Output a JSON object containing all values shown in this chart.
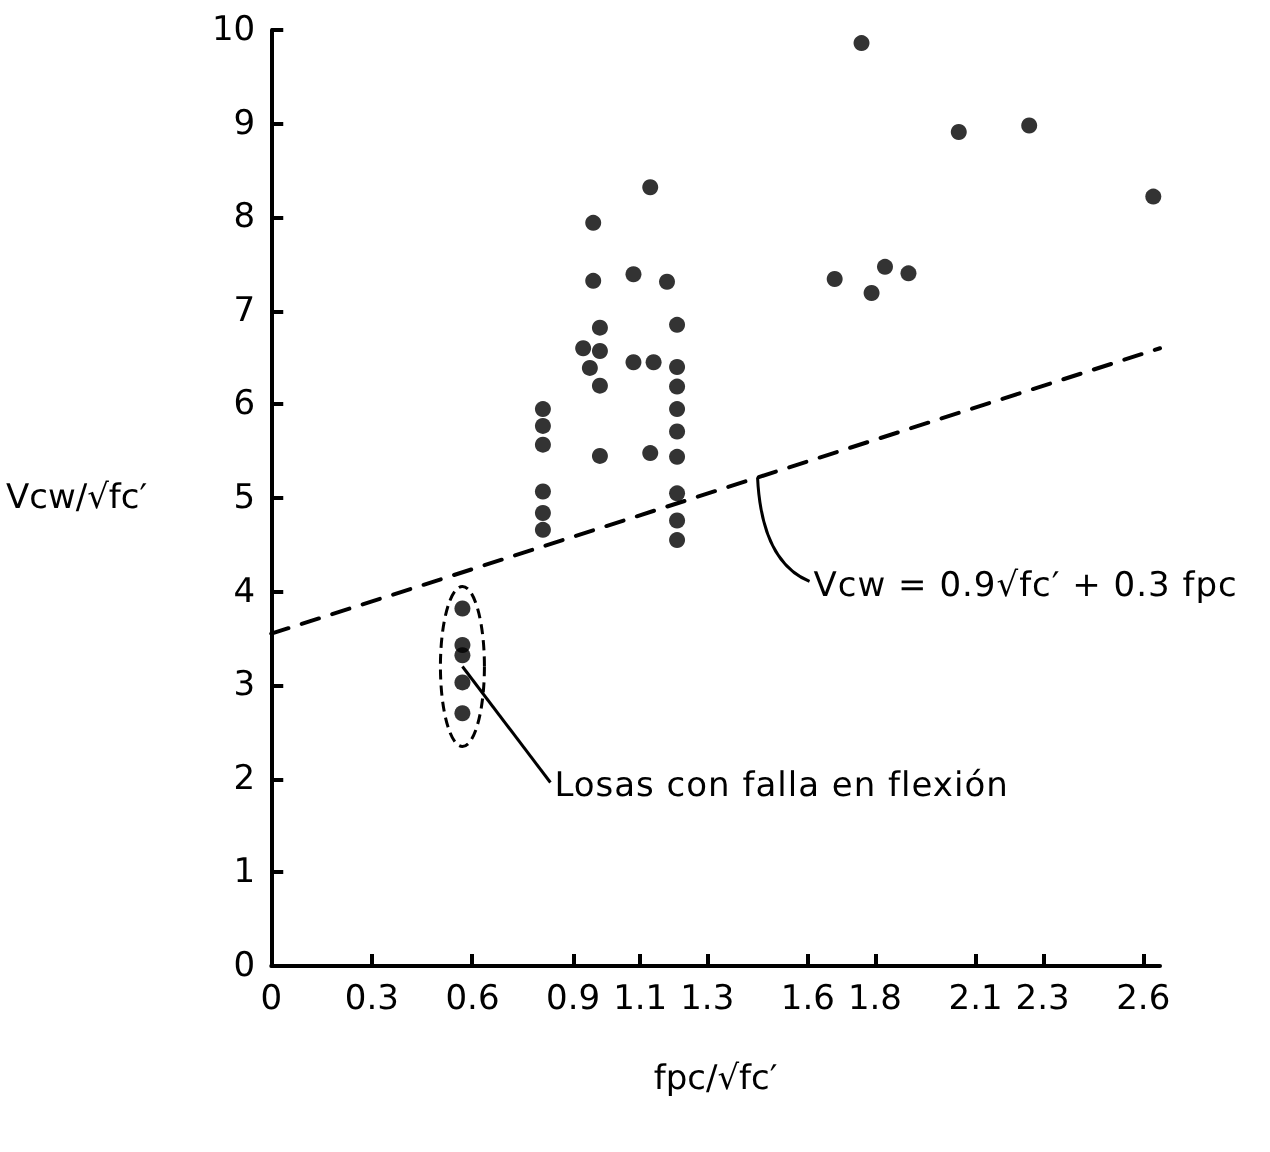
{
  "chart_data": {
    "type": "scatter",
    "xlabel": "fpc/√fc′",
    "ylabel": "Vcw/√fc′",
    "xlim": [
      0,
      2.65
    ],
    "ylim": [
      0,
      10
    ],
    "xticks": [
      0,
      0.3,
      0.6,
      0.9,
      1.1,
      1.3,
      1.6,
      1.8,
      2.1,
      2.3,
      2.6
    ],
    "yticks": [
      0,
      1,
      2,
      3,
      4,
      5,
      6,
      7,
      8,
      9,
      10
    ],
    "grid": false,
    "marker": "circle",
    "series": [
      {
        "color": "#000000",
        "x": [
          0.57,
          0.57,
          0.57,
          0.57,
          0.57,
          0.81,
          0.81,
          0.81,
          0.81,
          0.81,
          0.81,
          0.93,
          0.95,
          0.96,
          0.96,
          0.98,
          0.98,
          0.98,
          0.98,
          1.08,
          1.08,
          1.13,
          1.14,
          1.13,
          1.18,
          1.21,
          1.21,
          1.21,
          1.21,
          1.21,
          1.21,
          1.21,
          1.21,
          1.21,
          1.76,
          2.05,
          2.26,
          2.63,
          1.68,
          1.83,
          1.79,
          1.9
        ],
        "values": [
          3.82,
          3.43,
          3.32,
          3.03,
          2.7,
          5.95,
          5.77,
          5.57,
          5.07,
          4.84,
          4.66,
          6.6,
          6.39,
          7.94,
          7.32,
          6.82,
          6.57,
          6.2,
          5.45,
          7.39,
          6.45,
          8.32,
          6.45,
          5.48,
          7.31,
          6.85,
          6.4,
          6.19,
          5.95,
          5.71,
          5.44,
          5.05,
          4.76,
          4.55,
          9.86,
          8.91,
          8.98,
          8.22,
          7.34,
          7.47,
          7.19,
          7.4
        ]
      },
      {
        "type": "line",
        "color": "#000000",
        "line_style": "dashed",
        "marker": "none",
        "x": [
          0,
          2.65
        ],
        "values": [
          3.55,
          6.6
        ]
      }
    ],
    "annotations": [
      {
        "text": "Vcw = 0.9√fc′ + 0.3 fpc",
        "x": 1.45,
        "y": 5.22
      },
      {
        "text": "Losas con falla en flexión",
        "x": 0.57,
        "y": 3.2
      }
    ]
  }
}
